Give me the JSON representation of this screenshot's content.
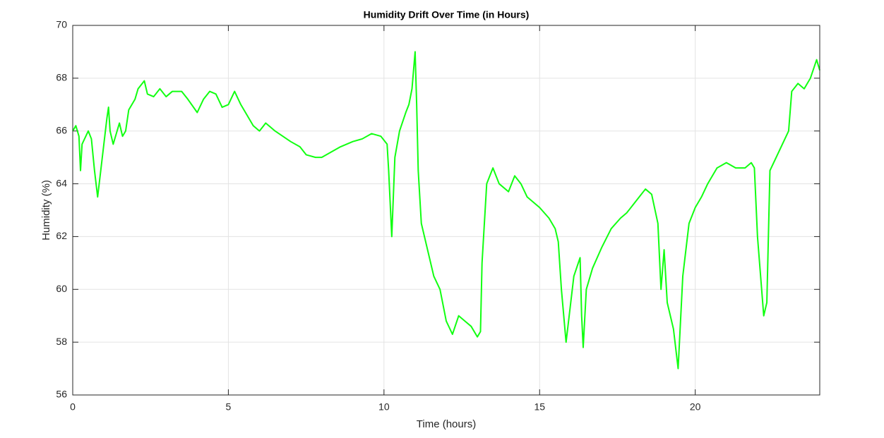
{
  "chart_data": {
    "type": "line",
    "title": "Humidity Drift Over Time (in Hours)",
    "xlabel": "Time (hours)",
    "ylabel": "Humidity (%)",
    "x": [
      0,
      0.1,
      0.2,
      0.25,
      0.3,
      0.5,
      0.6,
      0.7,
      0.8,
      0.9,
      1.0,
      1.1,
      1.15,
      1.2,
      1.3,
      1.5,
      1.6,
      1.7,
      1.8,
      2.0,
      2.1,
      2.3,
      2.4,
      2.6,
      2.8,
      3.0,
      3.2,
      3.5,
      3.7,
      4.0,
      4.2,
      4.4,
      4.6,
      4.8,
      5.0,
      5.2,
      5.4,
      5.6,
      5.8,
      6.0,
      6.2,
      6.5,
      7.0,
      7.3,
      7.5,
      7.8,
      8.0,
      8.3,
      8.6,
      9.0,
      9.3,
      9.6,
      9.9,
      10.1,
      10.15,
      10.25,
      10.3,
      10.35,
      10.5,
      10.7,
      10.8,
      10.9,
      11.0,
      11.05,
      11.1,
      11.2,
      11.4,
      11.6,
      11.8,
      12.0,
      12.2,
      12.4,
      12.6,
      12.8,
      13.0,
      13.1,
      13.15,
      13.3,
      13.5,
      13.7,
      14.0,
      14.2,
      14.4,
      14.6,
      15.0,
      15.3,
      15.5,
      15.6,
      15.7,
      15.85,
      16.0,
      16.1,
      16.3,
      16.35,
      16.4,
      16.5,
      16.7,
      17.0,
      17.3,
      17.6,
      17.8,
      18.0,
      18.2,
      18.4,
      18.6,
      18.8,
      18.9,
      19.0,
      19.1,
      19.3,
      19.45,
      19.6,
      19.8,
      20.0,
      20.2,
      20.4,
      20.7,
      21.0,
      21.3,
      21.6,
      21.8,
      21.9,
      22.0,
      22.1,
      22.2,
      22.3,
      22.4,
      22.6,
      22.8,
      23.0,
      23.1,
      23.3,
      23.5,
      23.7,
      23.9,
      24.0
    ],
    "series": [
      {
        "color": "#11ff11",
        "values": [
          66.0,
          66.2,
          65.8,
          64.5,
          65.5,
          66.0,
          65.7,
          64.5,
          63.5,
          64.5,
          65.5,
          66.5,
          66.9,
          66.0,
          65.5,
          66.3,
          65.8,
          66.0,
          66.8,
          67.2,
          67.6,
          67.9,
          67.4,
          67.3,
          67.6,
          67.3,
          67.5,
          67.5,
          67.2,
          66.7,
          67.2,
          67.5,
          67.4,
          66.9,
          67.0,
          67.5,
          67.0,
          66.6,
          66.2,
          66.0,
          66.3,
          66.0,
          65.6,
          65.4,
          65.1,
          65.0,
          65.0,
          65.2,
          65.4,
          65.6,
          65.7,
          65.9,
          65.8,
          65.5,
          64.5,
          62.0,
          63.5,
          65.0,
          66.0,
          66.7,
          67.0,
          67.6,
          69.0,
          67.0,
          64.5,
          62.5,
          61.5,
          60.5,
          60.0,
          58.8,
          58.3,
          59.0,
          58.8,
          58.6,
          58.2,
          58.4,
          61.0,
          64.0,
          64.6,
          64.0,
          63.7,
          64.3,
          64.0,
          63.5,
          63.1,
          62.7,
          62.3,
          61.8,
          60.0,
          58.0,
          59.5,
          60.5,
          61.2,
          59.0,
          57.8,
          60.0,
          60.8,
          61.6,
          62.3,
          62.7,
          62.9,
          63.2,
          63.5,
          63.8,
          63.6,
          62.5,
          60.0,
          61.5,
          59.5,
          58.5,
          57.0,
          60.5,
          62.5,
          63.1,
          63.5,
          64.0,
          64.6,
          64.8,
          64.6,
          64.6,
          64.8,
          64.6,
          62.0,
          60.5,
          59.0,
          59.5,
          64.5,
          65.0,
          65.5,
          66.0,
          67.5,
          67.8,
          67.6,
          68.0,
          68.7,
          68.3
        ]
      }
    ],
    "xlim": [
      0,
      24
    ],
    "xticks": [
      0,
      5,
      10,
      15,
      20
    ],
    "ylim": [
      56,
      70
    ],
    "yticks": [
      56,
      58,
      60,
      62,
      64,
      66,
      68,
      70
    ],
    "grid": true
  }
}
